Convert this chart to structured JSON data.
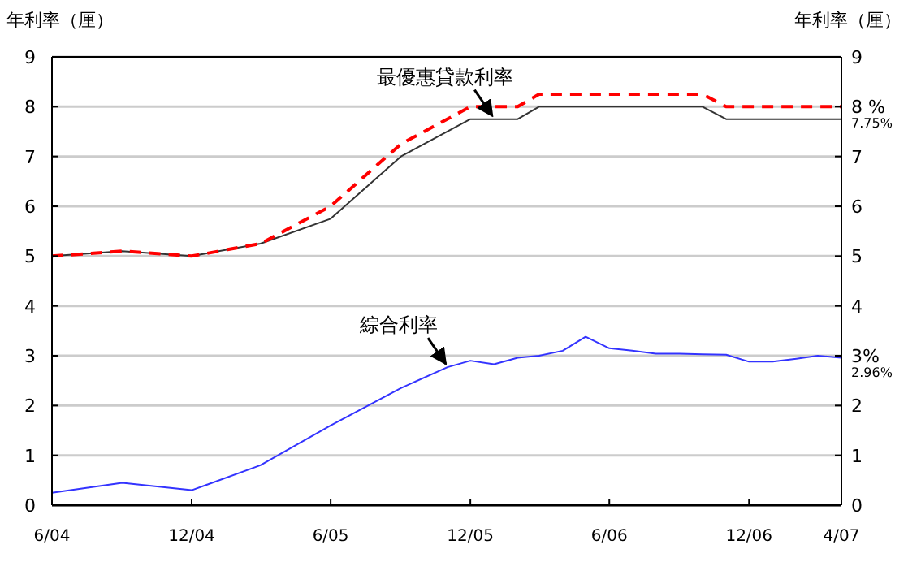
{
  "chart_data": {
    "type": "line",
    "ylabel": "年利率（厘）",
    "y2label": "年利率（厘）",
    "xlim": [
      "2004-06",
      "2007-04"
    ],
    "xticks": [
      {
        "value": "2004-06",
        "label": "6/04"
      },
      {
        "value": "2004-12",
        "label": "12/04"
      },
      {
        "value": "2005-06",
        "label": "6/05"
      },
      {
        "value": "2005-12",
        "label": "12/05"
      },
      {
        "value": "2006-06",
        "label": "6/06"
      },
      {
        "value": "2006-12",
        "label": "12/06"
      },
      {
        "value": "2007-04",
        "label": "4/07"
      }
    ],
    "ylim": [
      0,
      9
    ],
    "yticks": [
      0,
      1,
      2,
      3,
      4,
      5,
      6,
      7,
      8,
      9
    ],
    "y2lim": [
      0,
      9
    ],
    "y2ticks": [
      0,
      1,
      2,
      {
        "value": 3,
        "label": null
      },
      4,
      5,
      6,
      7,
      {
        "value": 8,
        "label": null
      },
      9
    ],
    "grid": "y",
    "series": [
      {
        "color": "#333333",
        "line_style": "solid",
        "x": [
          "2004-06",
          "2004-09",
          "2004-12",
          "2005-03",
          "2005-06",
          "2005-09",
          "2005-12",
          "2006-02",
          "2006-03",
          "2006-10",
          "2006-11",
          "2007-04"
        ],
        "values": [
          5,
          5.1,
          5,
          5.25,
          5.75,
          7,
          7.75,
          7.75,
          8,
          8,
          7.75,
          7.75
        ]
      },
      {
        "color": "#ff0000",
        "line_style": "dashed",
        "x": [
          "2004-06",
          "2004-09",
          "2004-12",
          "2005-03",
          "2005-06",
          "2005-09",
          "2005-12",
          "2006-02",
          "2006-03",
          "2006-10",
          "2006-11",
          "2007-04"
        ],
        "values": [
          5,
          5.1,
          5,
          5.25,
          6,
          7.25,
          8,
          8,
          8.25,
          8.25,
          8,
          8
        ]
      },
      {
        "color": "#3333ff",
        "line_style": "solid",
        "x": [
          "2004-06",
          "2004-09",
          "2004-12",
          "2005-03",
          "2005-06",
          "2005-09",
          "2005-11",
          "2005-12",
          "2006-01",
          "2006-02",
          "2006-03",
          "2006-04",
          "2006-05",
          "2006-06",
          "2006-07",
          "2006-08",
          "2006-09",
          "2006-10",
          "2006-11",
          "2006-12",
          "2007-01",
          "2007-02",
          "2007-03",
          "2007-04"
        ],
        "values": [
          0.25,
          0.45,
          0.3,
          0.8,
          1.6,
          2.35,
          2.77,
          2.9,
          2.83,
          2.96,
          3,
          3.1,
          3.38,
          3.15,
          3.1,
          3.04,
          3.04,
          3.03,
          3.02,
          2.88,
          2.88,
          2.94,
          3,
          2.96
        ]
      }
    ],
    "annotations": [
      {
        "text": "最優惠貸款利率",
        "x": "2006-01",
        "y": 7.75
      },
      {
        "text": "綜合利率",
        "x": "2005-11",
        "y": 2.77
      },
      {
        "text": "8 %",
        "x": "2007-04",
        "y": 8
      },
      {
        "text": "7.75%",
        "x": "2007-04",
        "y": 7.75
      },
      {
        "text": "3%",
        "x": "2007-04",
        "y": 3
      },
      {
        "text": "2.96%",
        "x": "2007-04",
        "y": 2.96
      }
    ]
  }
}
